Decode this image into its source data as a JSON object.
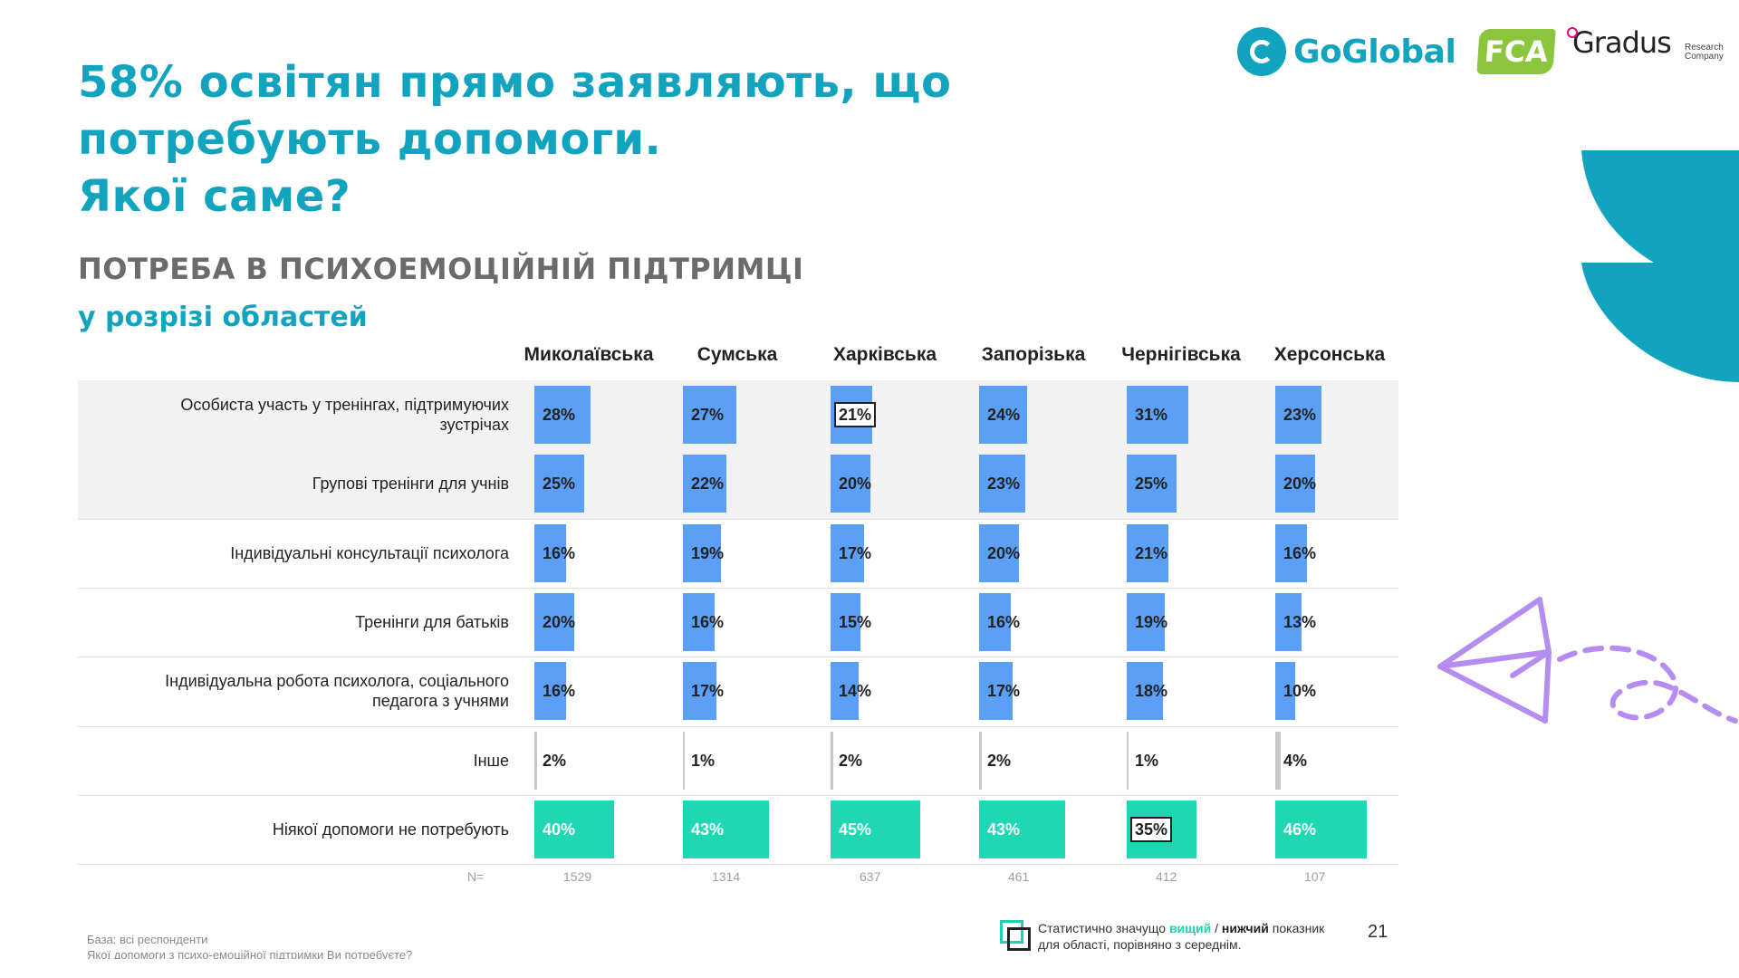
{
  "slide": {
    "title_lines": [
      "58% освітян прямо заявляють, що",
      "потребують допомоги.",
      "Якої саме?"
    ],
    "section_title": "ПОТРЕБА В ПСИХОЕМОЦІЙНІЙ ПІДТРИМЦІ",
    "section_subtitle": "у розрізі областей",
    "page_number": "21"
  },
  "logos": {
    "goglobal": "GoGlobal",
    "fca": "FCA",
    "gradus": "Gradus",
    "gradus_small_1": "Research",
    "gradus_small_2": "Company"
  },
  "colors": {
    "accent": "#12a4bf",
    "bar_blue": "#5b9ff6",
    "bar_teal": "#1fd8b3",
    "bar_other": "#c8c8c8",
    "row_shade": "#f2f2f2",
    "plane": "#b58cf0"
  },
  "chart_data": {
    "type": "bar",
    "regions": [
      "Миколаївська",
      "Сумська",
      "Харківська",
      "Запорізька",
      "Чернігівська",
      "Херсонська"
    ],
    "categories": [
      "Особиста участь у тренінгах, підтримуючих зустрічах",
      "Групові тренінги для учнів",
      "Індивідуальні консультації психолога",
      "Тренінги для батьків",
      "Індивідуальна робота психолога, соціального педагога з учнями",
      "Інше",
      "Ніякої допомоги не потребують"
    ],
    "category_lines": [
      [
        "Особиста участь у тренінгах, підтримуючих",
        "зустрічах"
      ],
      [
        "Групові тренінги для учнів"
      ],
      [
        "Індивідуальні консультації психолога"
      ],
      [
        "Тренінги для батьків"
      ],
      [
        "Індивідуальна робота психолога, соціального",
        "педагога з учнями"
      ],
      [
        "Інше"
      ],
      [
        "Ніякої допомоги не потребують"
      ]
    ],
    "values": [
      [
        28,
        27,
        21,
        24,
        31,
        23
      ],
      [
        25,
        22,
        20,
        23,
        25,
        20
      ],
      [
        16,
        19,
        17,
        20,
        21,
        16
      ],
      [
        20,
        16,
        15,
        16,
        19,
        13
      ],
      [
        16,
        17,
        14,
        17,
        18,
        10
      ],
      [
        2,
        1,
        2,
        2,
        1,
        4
      ],
      [
        40,
        43,
        45,
        43,
        35,
        46
      ]
    ],
    "significant": [
      {
        "category": 0,
        "region": 2
      },
      {
        "category": 6,
        "region": 4
      }
    ],
    "n_label": "N=",
    "n_values": [
      "1529",
      "1314",
      "637",
      "461",
      "412",
      "107"
    ]
  },
  "legend": {
    "text_before": "Статистично значущо ",
    "higher": "вищий",
    "slash": " / ",
    "lower": "нижчий",
    "text_after": " показник для області, порівняно з середнім."
  },
  "footnote": {
    "base": "База: всі респонденти",
    "question": "Якої допомоги з психо-емоційної підтримки Ви потребуєте?"
  }
}
